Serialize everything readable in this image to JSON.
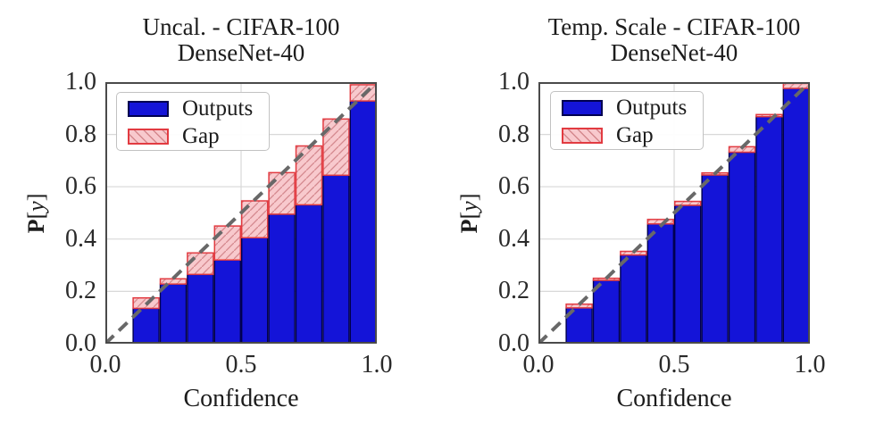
{
  "figure": {
    "background": "#ffffff",
    "description_colors": {
      "outputs_fill": "#1414d8",
      "outputs_edge": "#000050",
      "gap_fill": "#f8c9cd",
      "gap_edge": "#e23b41",
      "gap_hatch": "#d4888d",
      "diagonal": "#686868",
      "gridline": "#d8d8d8",
      "plot_border": "#4a4a4a",
      "text": "#1c1c1c"
    }
  },
  "chart_data": [
    {
      "type": "bar",
      "title_line1": "Uncal. - CIFAR-100",
      "title_line2": "DenseNet-40",
      "xlabel": "Confidence",
      "ylabel": "P[y]",
      "ylabel_p": "P",
      "ylabel_open": "[",
      "ylabel_var": "y",
      "ylabel_close": "]",
      "xlim": [
        0.0,
        1.0
      ],
      "ylim": [
        0.0,
        1.0
      ],
      "x_ticks": [
        "0.0",
        "0.5",
        "1.0"
      ],
      "y_ticks": [
        "0.0",
        "0.2",
        "0.4",
        "0.6",
        "0.8",
        "1.0"
      ],
      "grid": {
        "x": [
          0.5
        ],
        "y": [
          0.2,
          0.4,
          0.6,
          0.8
        ]
      },
      "diagonal": true,
      "legend_position": "upper left",
      "bin_edges": [
        0.1,
        0.2,
        0.3,
        0.4,
        0.5,
        0.6,
        0.7,
        0.8,
        0.9,
        1.0
      ],
      "series": [
        {
          "name": "Outputs",
          "role": "accuracy",
          "values": [
            0.135,
            0.228,
            0.265,
            0.32,
            0.405,
            0.495,
            0.531,
            0.644,
            0.928
          ]
        },
        {
          "name": "Gap",
          "role": "gap_top_confidence",
          "values": [
            0.175,
            0.248,
            0.347,
            0.45,
            0.546,
            0.654,
            0.756,
            0.859,
            0.99
          ]
        }
      ]
    },
    {
      "type": "bar",
      "title_line1": "Temp. Scale - CIFAR-100",
      "title_line2": "DenseNet-40",
      "xlabel": "Confidence",
      "ylabel": "P[y]",
      "ylabel_p": "P",
      "ylabel_open": "[",
      "ylabel_var": "y",
      "ylabel_close": "]",
      "xlim": [
        0.0,
        1.0
      ],
      "ylim": [
        0.0,
        1.0
      ],
      "x_ticks": [
        "0.0",
        "0.5",
        "1.0"
      ],
      "y_ticks": [
        "0.0",
        "0.2",
        "0.4",
        "0.6",
        "0.8",
        "1.0"
      ],
      "grid": {
        "x": [
          0.5
        ],
        "y": [
          0.2,
          0.4,
          0.6,
          0.8
        ]
      },
      "diagonal": true,
      "legend_position": "upper left",
      "bin_edges": [
        0.1,
        0.2,
        0.3,
        0.4,
        0.5,
        0.6,
        0.7,
        0.8,
        0.9,
        1.0
      ],
      "series": [
        {
          "name": "Outputs",
          "role": "accuracy",
          "values": [
            0.137,
            0.242,
            0.339,
            0.458,
            0.529,
            0.645,
            0.732,
            0.868,
            0.976
          ]
        },
        {
          "name": "Gap",
          "role": "gap_top_confidence",
          "values": [
            0.151,
            0.25,
            0.353,
            0.475,
            0.544,
            0.653,
            0.753,
            0.876,
            0.995
          ]
        }
      ]
    }
  ]
}
